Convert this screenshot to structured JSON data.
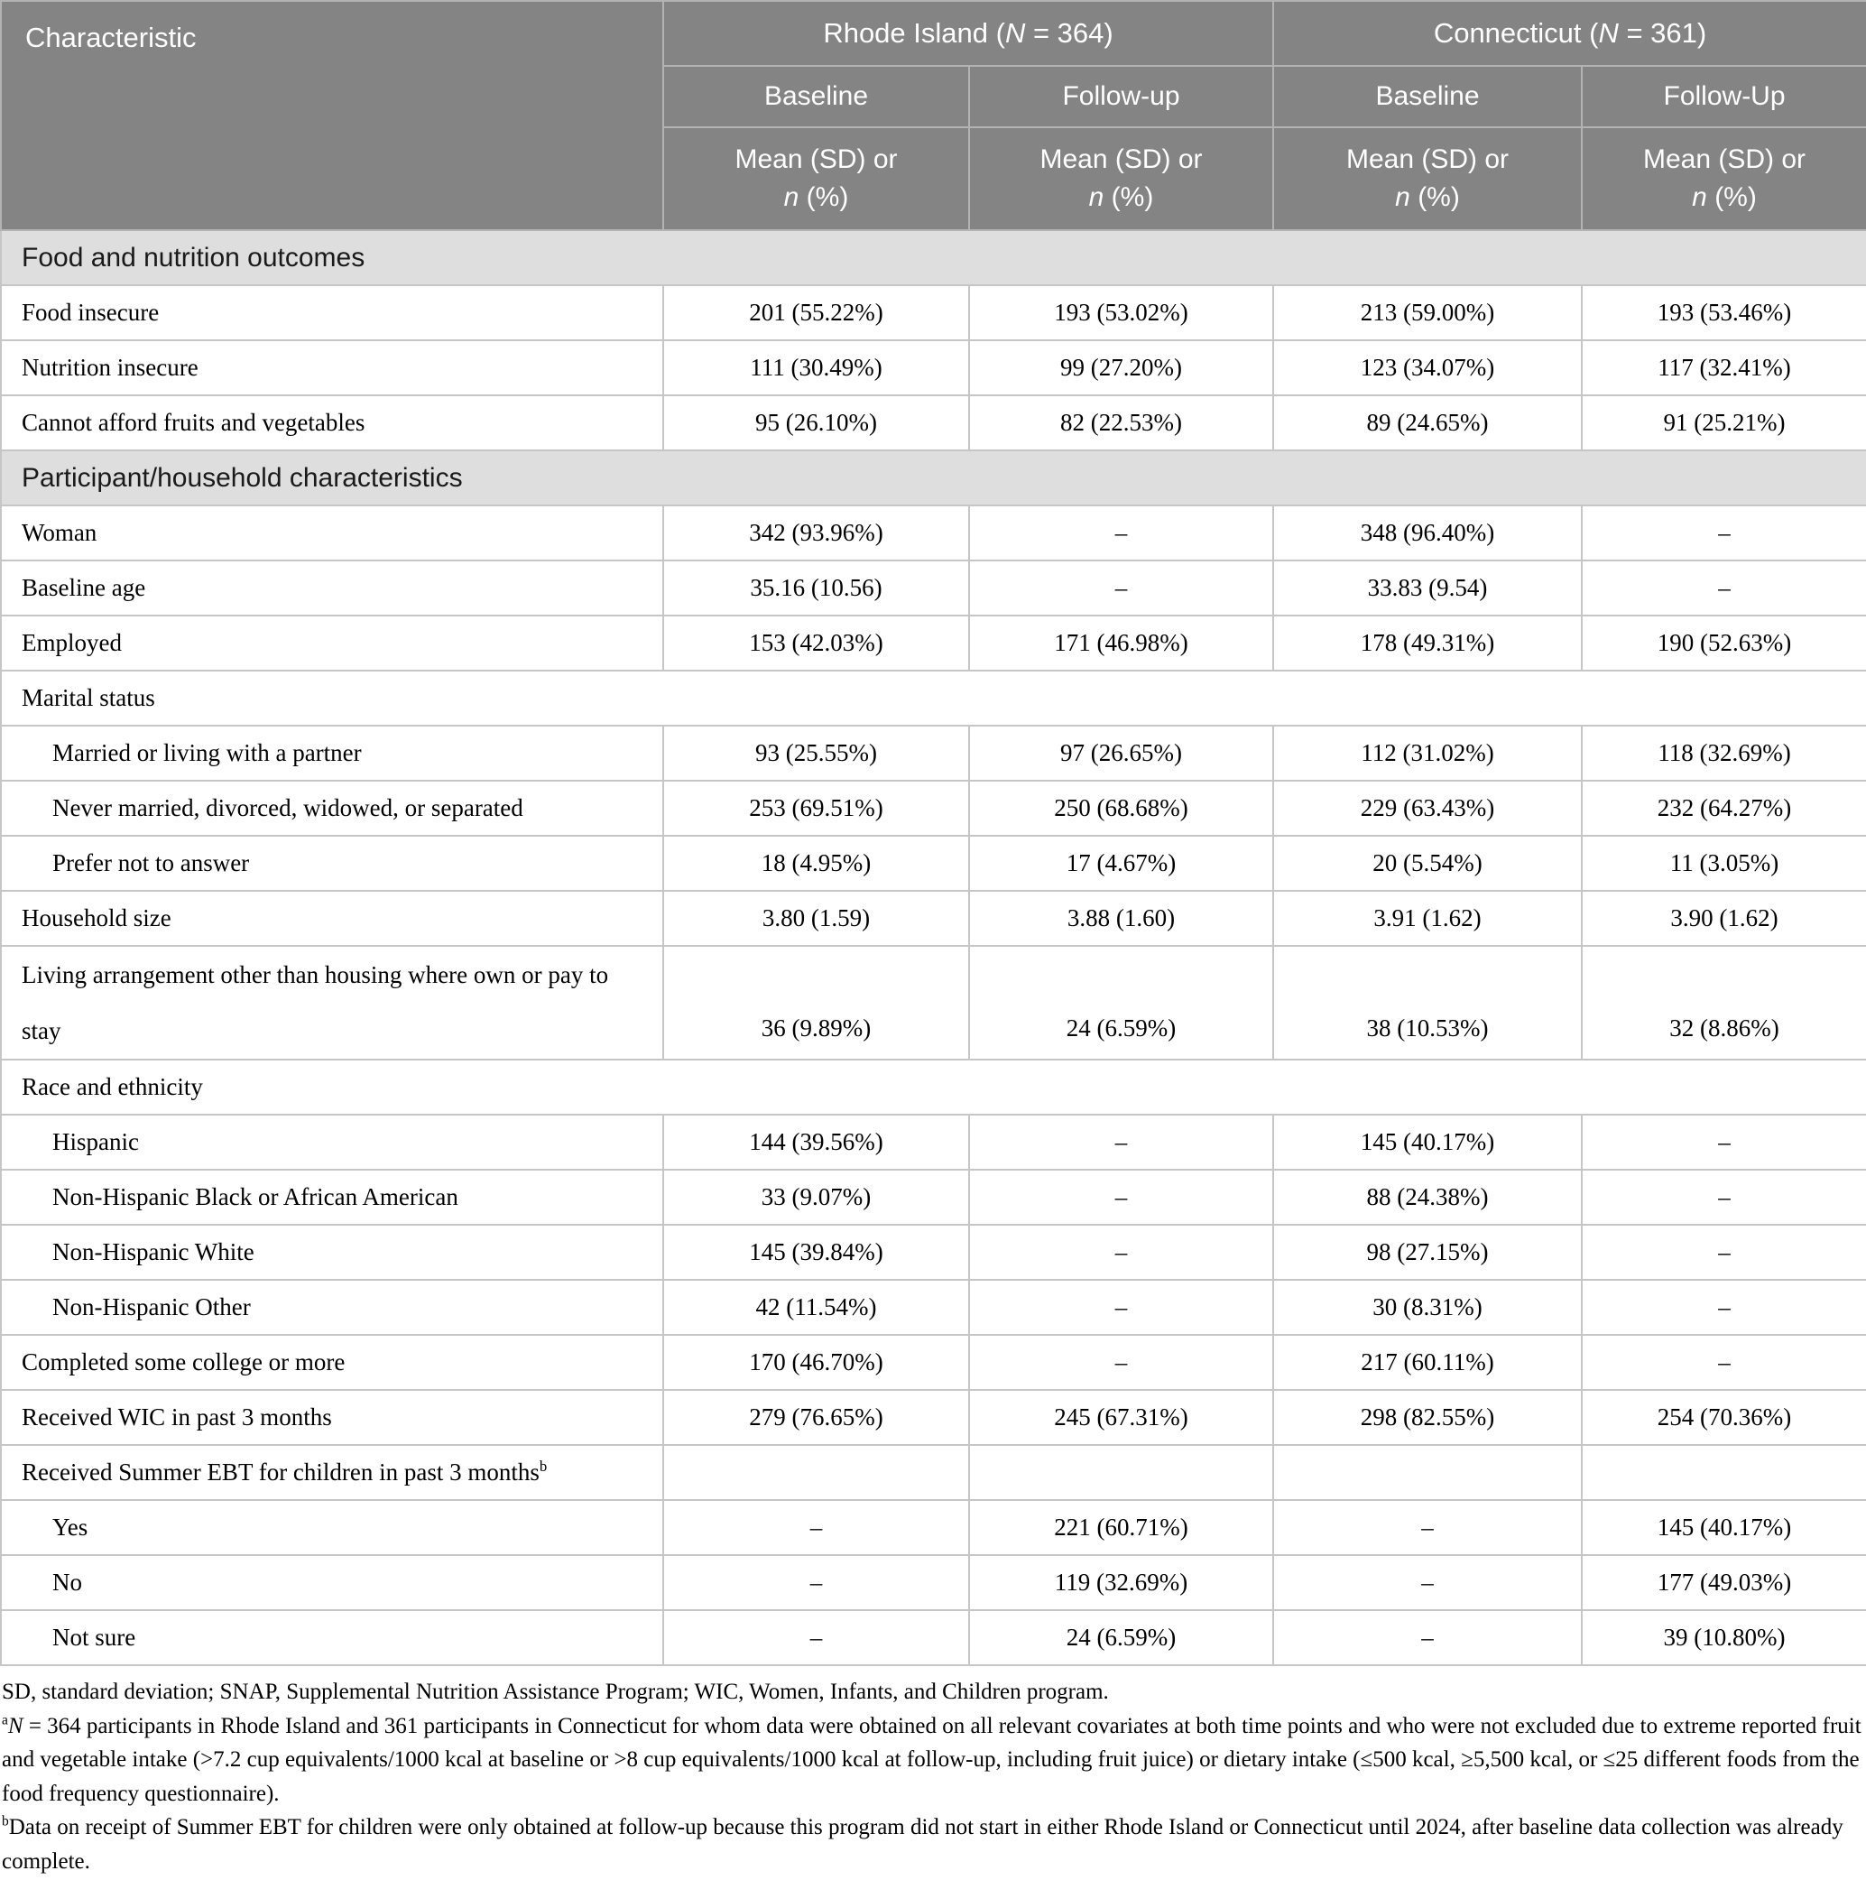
{
  "colors": {
    "header_bg": "#848484",
    "header_text": "#ffffff",
    "section_bg": "#dfdede",
    "border": "#c6c6c6",
    "header_border": "#b3b3b3"
  },
  "table": {
    "header": {
      "characteristic": "Characteristic",
      "groups": [
        {
          "prefix": "Rhode Island (",
          "n": "N",
          "suffix": " = 364)",
          "sub": [
            "Baseline",
            "Follow-up"
          ]
        },
        {
          "prefix": "Connecticut (",
          "n": "N",
          "suffix": " = 361)",
          "sub": [
            "Baseline",
            "Follow-Up"
          ]
        }
      ],
      "measure_line1": "Mean (SD) or",
      "measure_n": "n",
      "measure_suffix": " (%)"
    },
    "rows": [
      {
        "type": "section",
        "label": "Food and nutrition outcomes"
      },
      {
        "type": "data",
        "label": "Food insecure",
        "values": [
          "201 (55.22%)",
          "193 (53.02%)",
          "213 (59.00%)",
          "193 (53.46%)"
        ]
      },
      {
        "type": "data",
        "label": "Nutrition insecure",
        "values": [
          "111 (30.49%)",
          "99 (27.20%)",
          "123 (34.07%)",
          "117 (32.41%)"
        ]
      },
      {
        "type": "data",
        "label": "Cannot afford fruits and vegetables",
        "values": [
          "95 (26.10%)",
          "82 (22.53%)",
          "89 (24.65%)",
          "91 (25.21%)"
        ]
      },
      {
        "type": "section",
        "label": "Participant/household characteristics"
      },
      {
        "type": "data",
        "label": "Woman",
        "values": [
          "342 (93.96%)",
          "–",
          "348 (96.40%)",
          "–"
        ]
      },
      {
        "type": "data",
        "label": "Baseline age",
        "values": [
          "35.16 (10.56)",
          "–",
          "33.83 (9.54)",
          "–"
        ]
      },
      {
        "type": "data",
        "label": "Employed",
        "values": [
          "153 (42.03%)",
          "171 (46.98%)",
          "178 (49.31%)",
          "190 (52.63%)"
        ]
      },
      {
        "type": "group",
        "label": "Marital status"
      },
      {
        "type": "data",
        "indent": true,
        "label": "Married or living with a partner",
        "values": [
          "93 (25.55%)",
          "97 (26.65%)",
          "112 (31.02%)",
          "118 (32.69%)"
        ]
      },
      {
        "type": "data",
        "indent": true,
        "label": "Never married, divorced, widowed, or separated",
        "values": [
          "253 (69.51%)",
          "250 (68.68%)",
          "229 (63.43%)",
          "232 (64.27%)"
        ]
      },
      {
        "type": "data",
        "indent": true,
        "label": "Prefer not to answer",
        "values": [
          "18 (4.95%)",
          "17 (4.67%)",
          "20 (5.54%)",
          "11 (3.05%)"
        ]
      },
      {
        "type": "data",
        "label": "Household size",
        "values": [
          "3.80 (1.59)",
          "3.88 (1.60)",
          "3.91 (1.62)",
          "3.90 (1.62)"
        ]
      },
      {
        "type": "data",
        "tall": true,
        "label": "Living arrangement other than housing where own or pay to stay",
        "values": [
          "36 (9.89%)",
          "24 (6.59%)",
          "38 (10.53%)",
          "32 (8.86%)"
        ]
      },
      {
        "type": "group",
        "label": "Race and ethnicity"
      },
      {
        "type": "data",
        "indent": true,
        "label": "Hispanic",
        "values": [
          "144 (39.56%)",
          "–",
          "145 (40.17%)",
          "–"
        ]
      },
      {
        "type": "data",
        "indent": true,
        "label": "Non-Hispanic Black or African American",
        "values": [
          "33 (9.07%)",
          "–",
          "88 (24.38%)",
          "–"
        ]
      },
      {
        "type": "data",
        "indent": true,
        "label": "Non-Hispanic White",
        "values": [
          "145 (39.84%)",
          "–",
          "98 (27.15%)",
          "–"
        ]
      },
      {
        "type": "data",
        "indent": true,
        "label": "Non-Hispanic Other",
        "values": [
          "42 (11.54%)",
          "–",
          "30 (8.31%)",
          "–"
        ]
      },
      {
        "type": "data",
        "label": "Completed some college or more",
        "values": [
          "170 (46.70%)",
          "–",
          "217 (60.11%)",
          "–"
        ]
      },
      {
        "type": "data",
        "label": "Received WIC in past 3 months",
        "values": [
          "279 (76.65%)",
          "245 (67.31%)",
          "298 (82.55%)",
          "254 (70.36%)"
        ]
      },
      {
        "type": "data",
        "label": "Received Summer EBT for children in past 3 months",
        "sup": "b",
        "values": [
          "",
          "",
          "",
          ""
        ]
      },
      {
        "type": "data",
        "indent": true,
        "label": "Yes",
        "values": [
          "–",
          "221 (60.71%)",
          "–",
          "145 (40.17%)"
        ]
      },
      {
        "type": "data",
        "indent": true,
        "label": "No",
        "values": [
          "–",
          "119 (32.69%)",
          "–",
          "177 (49.03%)"
        ]
      },
      {
        "type": "data",
        "indent": true,
        "label": "Not sure",
        "values": [
          "–",
          "24 (6.59%)",
          "–",
          "39 (10.80%)"
        ]
      }
    ]
  },
  "footnotes": {
    "abbrev": "SD, standard deviation; SNAP, Supplemental Nutrition Assistance Program; WIC, Women, Infants, and Children program.",
    "a_marker": "a",
    "a_italic": "N",
    "a_text": " = 364 participants in Rhode Island and 361 participants in Connecticut for whom data were obtained on all relevant covariates at both time points and who were not excluded due to extreme reported fruit and vegetable intake (>7.2 cup equivalents/1000 kcal at baseline or >8 cup equivalents/1000 kcal at follow-up, including fruit juice) or dietary intake (≤500 kcal, ≥5,500 kcal, or ≤25 different foods from the food frequency questionnaire).",
    "b_marker": "b",
    "b_text": "Data on receipt of Summer EBT for children were only obtained at follow-up because this program did not start in either Rhode Island or Connecticut until 2024, after baseline data collection was already complete."
  }
}
